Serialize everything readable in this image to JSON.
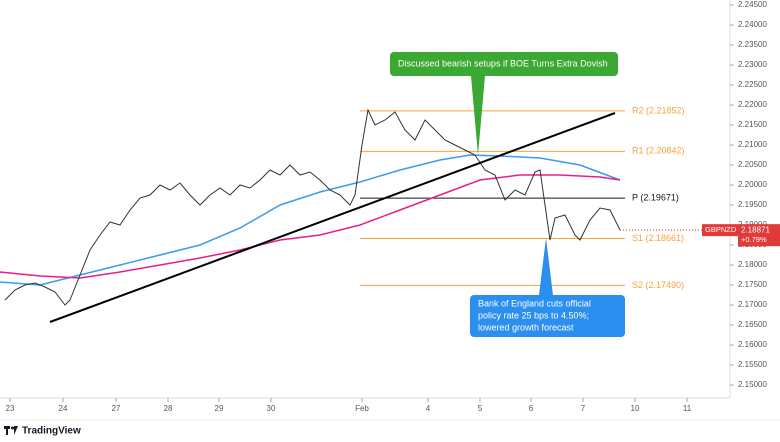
{
  "chart_data": {
    "type": "line",
    "symbol": "GBPNZD",
    "last_price": 2.18871,
    "change": "+0.79%",
    "footer": "TradingView",
    "xlim": [
      0,
      73
    ],
    "ylim": [
      2.14675,
      2.24625
    ],
    "xticks": [
      {
        "value": 1.0,
        "label": "23"
      },
      {
        "value": 6.3,
        "label": "24"
      },
      {
        "value": 11.6,
        "label": "27"
      },
      {
        "value": 16.8,
        "label": "28"
      },
      {
        "value": 21.9,
        "label": "29"
      },
      {
        "value": 27.1,
        "label": "30"
      },
      {
        "value": 36.2,
        "label": "Feb"
      },
      {
        "value": 42.8,
        "label": "4"
      },
      {
        "value": 48.0,
        "label": "5"
      },
      {
        "value": 53.1,
        "label": "6"
      },
      {
        "value": 58.3,
        "label": "7"
      },
      {
        "value": 63.5,
        "label": "10"
      },
      {
        "value": 68.7,
        "label": "11"
      }
    ],
    "yticks": [
      {
        "value": 2.15,
        "label": "2.15000"
      },
      {
        "value": 2.155,
        "label": "2.15500"
      },
      {
        "value": 2.16,
        "label": "2.16000"
      },
      {
        "value": 2.165,
        "label": "2.16500"
      },
      {
        "value": 2.17,
        "label": "2.17000"
      },
      {
        "value": 2.175,
        "label": "2.17500"
      },
      {
        "value": 2.18,
        "label": "2.18000"
      },
      {
        "value": 2.185,
        "label": "2.18500"
      },
      {
        "value": 2.19,
        "label": "2.19000"
      },
      {
        "value": 2.195,
        "label": "2.19500"
      },
      {
        "value": 2.2,
        "label": "2.20000"
      },
      {
        "value": 2.205,
        "label": "2.20500"
      },
      {
        "value": 2.21,
        "label": "2.21000"
      },
      {
        "value": 2.215,
        "label": "2.21500"
      },
      {
        "value": 2.22,
        "label": "2.22000"
      },
      {
        "value": 2.225,
        "label": "2.22500"
      },
      {
        "value": 2.23,
        "label": "2.23000"
      },
      {
        "value": 2.235,
        "label": "2.23500"
      },
      {
        "value": 2.24,
        "label": "2.24000"
      },
      {
        "value": 2.245,
        "label": "2.24500"
      }
    ],
    "price": {
      "color": "#333333",
      "x": [
        0.5,
        1.5,
        2.5,
        3.5,
        4.5,
        5.5,
        6.5,
        7.0,
        8.0,
        9.0,
        10.0,
        11.0,
        12.0,
        13.0,
        14.0,
        15.0,
        16.0,
        17.0,
        18.0,
        19.0,
        20.0,
        21.0,
        22.0,
        23.0,
        24.0,
        25.0,
        26.0,
        27.0,
        28.0,
        29.0,
        30.0,
        31.0,
        32.0,
        33.0,
        34.0,
        35.0,
        35.5,
        36.2,
        36.8,
        37.5,
        38.5,
        39.5,
        40.5,
        41.5,
        42.5,
        43.5,
        44.5,
        45.5,
        46.5,
        47.5,
        48.5,
        49.5,
        50.5,
        51.5,
        52.5,
        53.5,
        54.0,
        54.5,
        55.0,
        55.5,
        56.5,
        57.5,
        58.0,
        59.0,
        60.0,
        61.0,
        62.0
      ],
      "values": [
        2.17125,
        2.17375,
        2.175,
        2.1755,
        2.1745,
        2.17325,
        2.17,
        2.17125,
        2.1775,
        2.18375,
        2.1875,
        2.19075,
        2.19,
        2.19375,
        2.19675,
        2.1975,
        2.2,
        2.19875,
        2.2005,
        2.1975,
        2.195,
        2.1975,
        2.19925,
        2.1975,
        2.2,
        2.19925,
        2.20125,
        2.20375,
        2.2025,
        2.205,
        2.2025,
        2.20325,
        2.20125,
        2.19875,
        2.1975,
        2.195,
        2.1975,
        2.21,
        2.21875,
        2.215,
        2.21625,
        2.21825,
        2.21375,
        2.21125,
        2.21625,
        2.21375,
        2.21125,
        2.21,
        2.20875,
        2.2075,
        2.20375,
        2.2025,
        2.19625,
        2.19875,
        2.1975,
        2.20325,
        2.20375,
        2.195,
        2.18625,
        2.19175,
        2.1925,
        2.1875,
        2.18625,
        2.19125,
        2.19425,
        2.19375,
        2.18875
      ]
    },
    "ma_fast": {
      "color": "#3d9be9",
      "x": [
        0,
        4,
        8,
        12,
        16,
        20,
        24,
        28,
        32,
        36,
        40,
        44,
        47,
        50,
        54,
        58,
        62
      ],
      "values": [
        2.17575,
        2.175,
        2.1775,
        2.18,
        2.1825,
        2.185,
        2.18925,
        2.195,
        2.19825,
        2.20075,
        2.20375,
        2.20625,
        2.2075,
        2.20725,
        2.20675,
        2.205,
        2.20125
      ]
    },
    "ma_slow": {
      "color": "#e91e8c",
      "x": [
        0,
        4,
        8,
        12,
        16,
        20,
        24,
        28,
        32,
        36,
        40,
        44,
        48,
        52,
        56,
        60,
        62
      ],
      "values": [
        2.17825,
        2.17725,
        2.17675,
        2.17825,
        2.18,
        2.18175,
        2.18375,
        2.18625,
        2.1875,
        2.19,
        2.19375,
        2.1975,
        2.20125,
        2.2025,
        2.2025,
        2.202,
        2.20125
      ]
    },
    "trendline": {
      "x": [
        5.0,
        61.5
      ],
      "values": [
        2.16575,
        2.218
      ]
    },
    "pivots": {
      "x": [
        36.0,
        62.5
      ],
      "levels": [
        {
          "value": 2.21852,
          "label": "R2 (2.21852)",
          "color": "#f7a23a"
        },
        {
          "value": 2.20842,
          "label": "R1 (2.20842)",
          "color": "#f7a23a"
        },
        {
          "value": 2.19671,
          "label": "P (2.19671)",
          "color": "#131722"
        },
        {
          "value": 2.18661,
          "label": "S1 (2.18661)",
          "color": "#f7a23a"
        },
        {
          "value": 2.1749,
          "label": "S2 (2.17490)",
          "color": "#f7a23a"
        }
      ]
    },
    "annotations": [
      {
        "lines": [
          "Discussed bearish setups if BOE Turns Extra Dovish"
        ],
        "color": "#3aa832",
        "x": 47.8,
        "value": 2.2075
      },
      {
        "lines": [
          "Bank of England cuts official",
          "policy rate 25 bps to 4.50%;",
          "lowered growth forecast"
        ],
        "color": "#2b8ff0",
        "x": 54.6,
        "value": 2.18675
      }
    ]
  }
}
